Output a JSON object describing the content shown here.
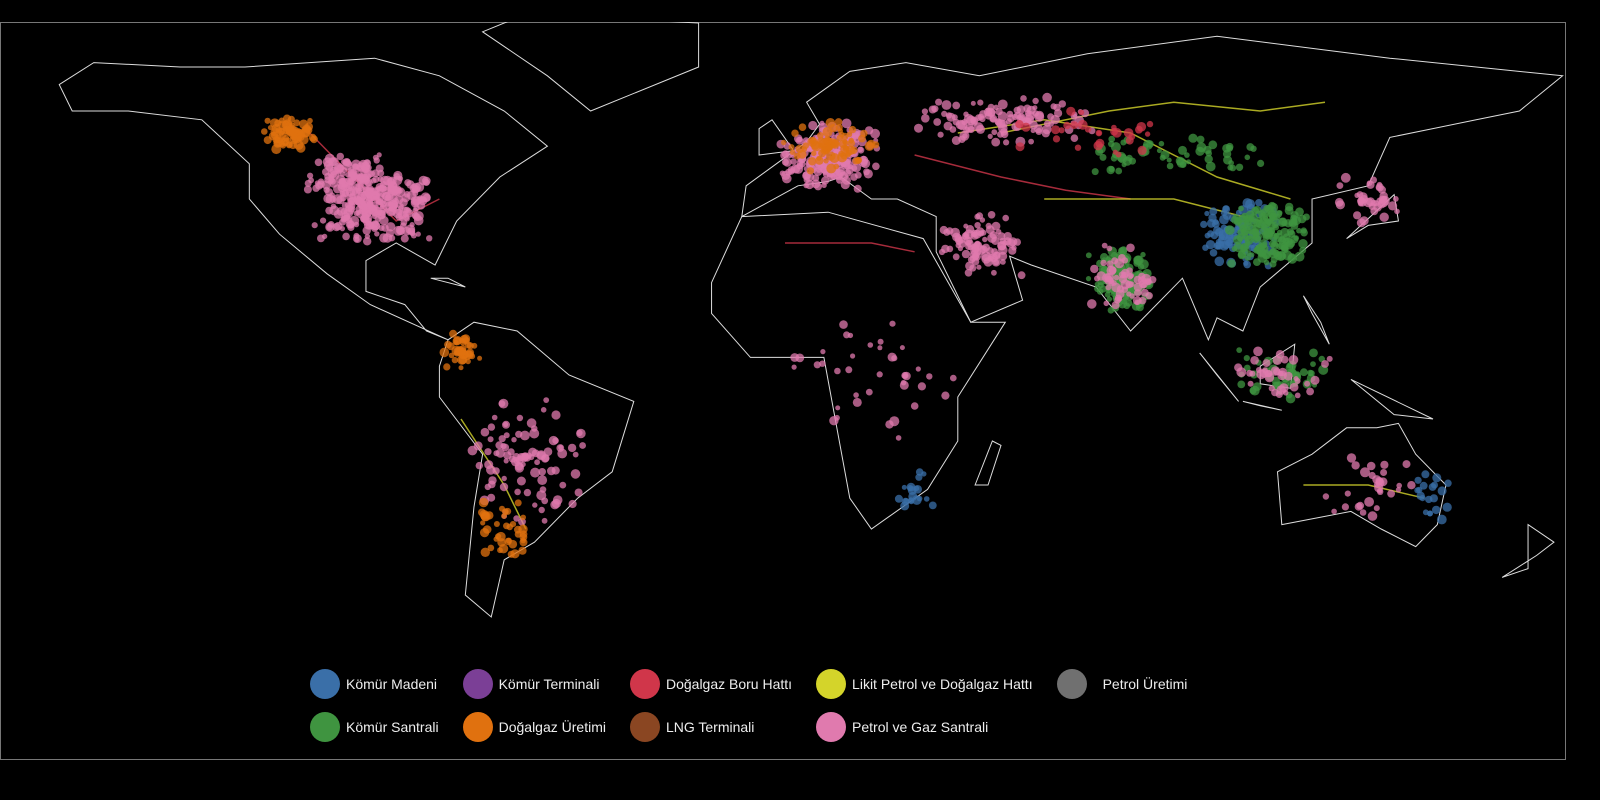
{
  "legend": [
    {
      "label": "Kömür Madeni",
      "color": "#3a6fa8"
    },
    {
      "label": "Kömür Terminali",
      "color": "#7b3f96"
    },
    {
      "label": "Doğalgaz Boru Hattı",
      "color": "#d0364a"
    },
    {
      "label": "Likit Petrol ve Doğalgaz Hattı",
      "color": "#d4d42a"
    },
    {
      "label": "Petrol Üretimi",
      "color": "#707070"
    },
    {
      "label": "Kömür Santrali",
      "color": "#3f9440"
    },
    {
      "label": "Doğalgaz Üretimi",
      "color": "#e0710f"
    },
    {
      "label": "LNG Terminali",
      "color": "#8a4622"
    },
    {
      "label": "Petrol ve Gaz Santrali",
      "color": "#e07aae"
    }
  ],
  "map": {
    "background": "#000000",
    "outline_color": "#dddddd",
    "projection": "equirectangular"
  }
}
